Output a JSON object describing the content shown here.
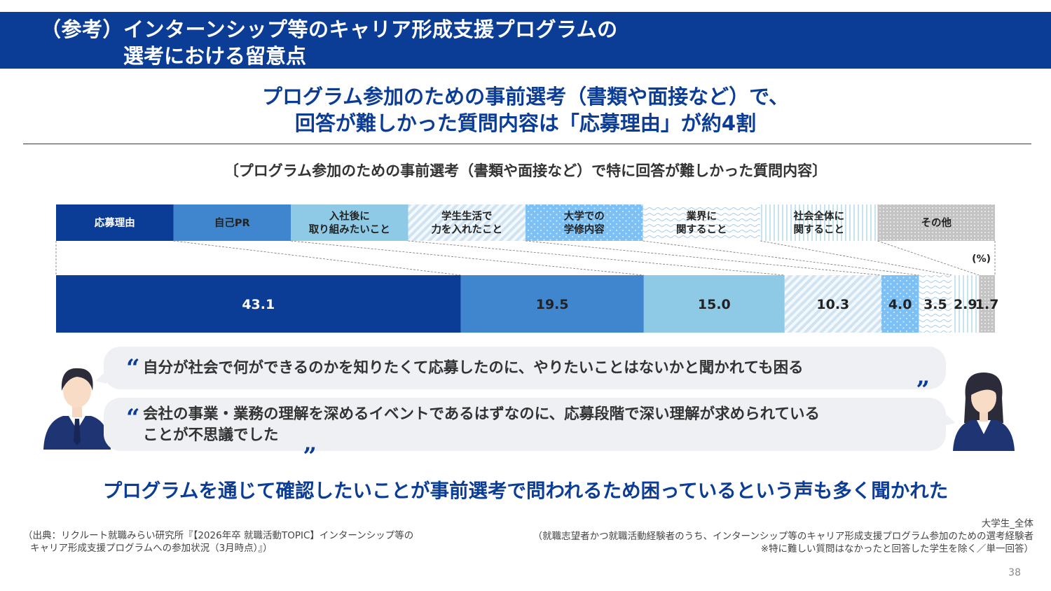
{
  "header": {
    "line1": "（参考）インターンシップ等のキャリア形成支援プログラムの",
    "line2": "選考における留意点"
  },
  "headline": {
    "line1": "プログラム参加のための事前選考（書類や面接など）で、",
    "line2": "回答が難しかった質問内容は「応募理由」が約4割"
  },
  "chart_data": {
    "type": "bar",
    "orientation": "horizontal-stacked-100",
    "title": "〔プログラム参加のための事前選考（書類や面接など）で特に回答が難しかった質問内容〕",
    "unit_label": "(%)",
    "series": [
      {
        "name": "応募理由",
        "legend_lines": [
          "応募理由"
        ],
        "value": 43.1,
        "color": "#0b3d96",
        "pattern": "solid",
        "light_text": true
      },
      {
        "name": "自己PR",
        "legend_lines": [
          "自己PR"
        ],
        "value": 19.5,
        "color": "#3f86cf",
        "pattern": "solid",
        "light_text": false
      },
      {
        "name": "入社後に取り組みたいこと",
        "legend_lines": [
          "入社後に",
          "取り組みたいこと"
        ],
        "value": 15.0,
        "color": "#8ecae6",
        "pattern": "solid",
        "light_text": false
      },
      {
        "name": "学生生活で力を入れたこと",
        "legend_lines": [
          "学生生活で",
          "力を入れたこと"
        ],
        "value": 10.3,
        "color": "#cfe6f5",
        "pattern": "diagonal",
        "light_text": false
      },
      {
        "name": "大学での学修内容",
        "legend_lines": [
          "大学での",
          "学修内容"
        ],
        "value": 4.0,
        "color": "#7cc0f5",
        "pattern": "dots",
        "light_text": false
      },
      {
        "name": "業界に関すること",
        "legend_lines": [
          "業界に",
          "関すること"
        ],
        "value": 3.5,
        "color": "#b7d6ef",
        "pattern": "waves",
        "light_text": false
      },
      {
        "name": "社会全体に関すること",
        "legend_lines": [
          "社会全体に",
          "関すること"
        ],
        "value": 2.9,
        "color": "#c6e3ee",
        "pattern": "vertical",
        "light_text": false
      },
      {
        "name": "その他",
        "legend_lines": [
          "その他"
        ],
        "value": 1.7,
        "color": "#b8b8b8",
        "pattern": "grid",
        "light_text": false
      }
    ],
    "xlim": [
      0,
      100
    ]
  },
  "quotes": [
    {
      "line1": "自分が社会で何ができるのかを知りたくて応募したのに、やりたいことはないかと聞かれても困る"
    },
    {
      "line1": "会社の事業・業務の理解を深めるイベントであるはずなのに、応募段階で深い理解が求められている",
      "line2": "ことが不思議でした"
    }
  ],
  "quote_marks": {
    "open": "“",
    "close": "„"
  },
  "bottom_message": "プログラムを通じて確認したいことが事前選考で問われるため困っているという声も多く聞かれた",
  "source": {
    "line1": "（出典：リクルート就職みらい研究所『【2026年卒 就職活動TOPIC】インターンシップ等の",
    "line2": "キャリア形成支援プログラムへの参加状況（3月時点）』）"
  },
  "note": {
    "line1": "大学生_全体",
    "line2": "（就職志望者かつ就職活動経験者のうち、インターンシップ等のキャリア形成支援プログラム参加のための選考経験者",
    "line3": "※特に難しい質問はなかったと回答した学生を除く／単一回答）"
  },
  "page_number": "38"
}
